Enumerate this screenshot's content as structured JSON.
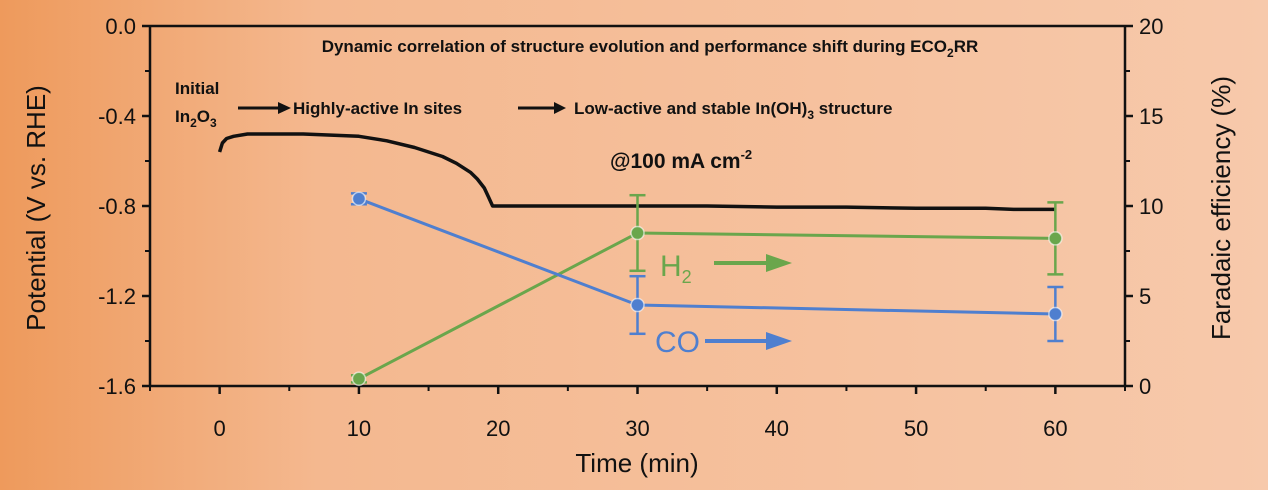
{
  "chart_data": {
    "type": "line",
    "title": "Dynamic correlation of structure evolution and performance shift during ECO2RR",
    "title_parts": {
      "before": "Dynamic correlation of structure evolution and performance shift during ECO",
      "sub": "2",
      "after": "RR"
    },
    "xlabel": "Time (min)",
    "ylabel_left": "Potential (V vs. RHE)",
    "ylabel_right": "Faradaic efficiency (%)",
    "xlim": [
      -5,
      65
    ],
    "ylim_left": [
      -1.6,
      0.0
    ],
    "ylim_right": [
      0,
      20
    ],
    "x_ticks": [
      "0",
      "10",
      "20",
      "30",
      "40",
      "50",
      "60"
    ],
    "y_left_ticks": [
      "0.0",
      "-0.4",
      "-0.8",
      "-1.2",
      "-1.6"
    ],
    "y_right_ticks": [
      "20",
      "15",
      "10",
      "5",
      "0"
    ],
    "potential_series": {
      "name": "Potential",
      "color": "#111111",
      "x": [
        0,
        0.2,
        0.5,
        1,
        2,
        4,
        6,
        8,
        10,
        12,
        14,
        16,
        17,
        18,
        18.5,
        19,
        19.3,
        19.6,
        20,
        25,
        30,
        35,
        40,
        45,
        50,
        55,
        57,
        60
      ],
      "y": [
        -0.56,
        -0.52,
        -0.5,
        -0.49,
        -0.48,
        -0.48,
        -0.48,
        -0.485,
        -0.49,
        -0.51,
        -0.54,
        -0.58,
        -0.61,
        -0.65,
        -0.68,
        -0.72,
        -0.76,
        -0.8,
        -0.8,
        -0.8,
        -0.8,
        -0.8,
        -0.805,
        -0.805,
        -0.81,
        -0.81,
        -0.815,
        -0.815
      ]
    },
    "fe_series": [
      {
        "name": "CO",
        "label": "CO",
        "color": "#4f7fcf",
        "x": [
          10,
          30,
          60
        ],
        "values": [
          10.4,
          4.5,
          4.0
        ],
        "errors": [
          0.3,
          1.6,
          1.5
        ]
      },
      {
        "name": "H2",
        "label": "H",
        "label_sub": "2",
        "color": "#6aa64c",
        "x": [
          10,
          30,
          60
        ],
        "values": [
          0.4,
          8.5,
          8.2
        ],
        "errors": [
          0.2,
          2.1,
          2.0
        ]
      }
    ],
    "annotations": {
      "initial_top": "Initial",
      "initial_formula": {
        "a": "In",
        "sub1": "2",
        "b": "O",
        "sub2": "3"
      },
      "stage2": "Highly-active In sites",
      "stage3": {
        "before": "Low-active and stable In(OH)",
        "sub": "3",
        "after": " structure"
      },
      "current_density": {
        "before": "@100 mA cm",
        "sup": "-2"
      }
    }
  },
  "colors": {
    "background_left": "#ee9a5c",
    "background_right": "#f7c9ab",
    "axis": "#111111"
  }
}
